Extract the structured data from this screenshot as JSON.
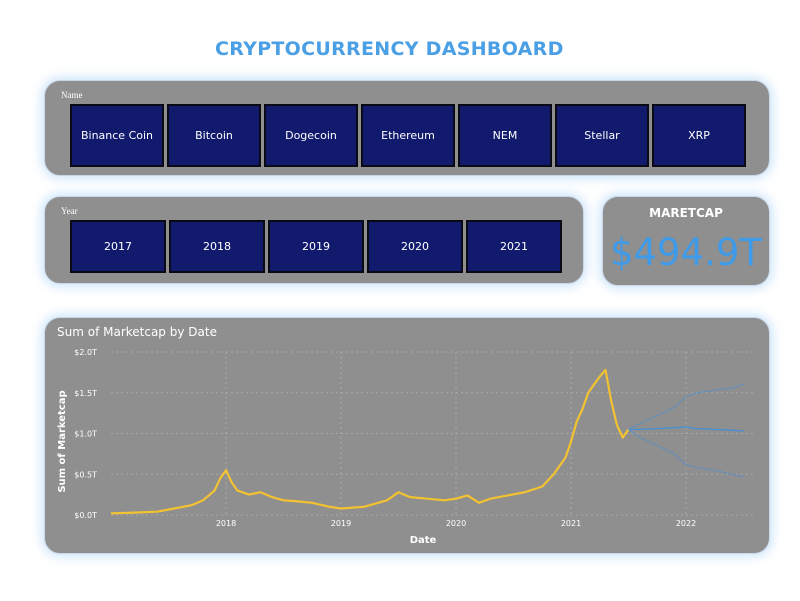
{
  "title": "CRYPTOCURRENCY DASHBOARD",
  "name_slicer": {
    "label": "Name",
    "items": [
      "Binance Coin",
      "Bitcoin",
      "Dogecoin",
      "Ethereum",
      "NEM",
      "Stellar",
      "XRP"
    ]
  },
  "year_slicer": {
    "label": "Year",
    "items": [
      "2017",
      "2018",
      "2019",
      "2020",
      "2021"
    ]
  },
  "kpi": {
    "label": "MARETCAP",
    "value": "$494.9T"
  },
  "colors": {
    "panel": "#8f8f8f",
    "slicer_button": "#121a6e",
    "accent": "#4a9fe5",
    "actual_line": "#f2c230",
    "forecast_line": "#3d8fe0"
  },
  "chart_data": {
    "type": "line",
    "title": "Sum of Marketcap by Date",
    "xlabel": "Date",
    "ylabel": "Sum of Marketcap",
    "ylim": [
      0,
      2.0
    ],
    "yunit": "T (trillion USD)",
    "y_ticks": [
      "$0.0T",
      "$0.5T",
      "$1.0T",
      "$1.5T",
      "$2.0T"
    ],
    "x_ticks": [
      "2018",
      "2019",
      "2020",
      "2021",
      "2022"
    ],
    "grid": true,
    "series": [
      {
        "name": "",
        "role": "actual",
        "x": [
          2017.0,
          2017.2,
          2017.4,
          2017.55,
          2017.7,
          2017.8,
          2017.9,
          2017.95,
          2018.0,
          2018.05,
          2018.1,
          2018.2,
          2018.3,
          2018.4,
          2018.5,
          2018.6,
          2018.75,
          2018.9,
          2019.0,
          2019.2,
          2019.4,
          2019.5,
          2019.6,
          2019.75,
          2019.9,
          2020.0,
          2020.1,
          2020.2,
          2020.3,
          2020.45,
          2020.6,
          2020.75,
          2020.85,
          2020.95,
          2021.0,
          2021.05,
          2021.1,
          2021.15,
          2021.2,
          2021.25,
          2021.3,
          2021.35,
          2021.4,
          2021.45,
          2021.5
        ],
        "y": [
          0.02,
          0.03,
          0.04,
          0.08,
          0.12,
          0.18,
          0.3,
          0.45,
          0.55,
          0.4,
          0.3,
          0.25,
          0.28,
          0.22,
          0.18,
          0.17,
          0.15,
          0.1,
          0.08,
          0.1,
          0.18,
          0.28,
          0.22,
          0.2,
          0.18,
          0.2,
          0.24,
          0.15,
          0.2,
          0.24,
          0.28,
          0.35,
          0.5,
          0.7,
          0.9,
          1.15,
          1.3,
          1.5,
          1.6,
          1.7,
          1.78,
          1.4,
          1.1,
          0.95,
          1.05
        ]
      },
      {
        "name": "",
        "role": "forecast",
        "x": [
          2021.5,
          2021.6,
          2021.75,
          2021.9,
          2022.0,
          2022.1,
          2022.25,
          2022.4,
          2022.5
        ],
        "y": [
          1.05,
          1.05,
          1.06,
          1.07,
          1.08,
          1.06,
          1.05,
          1.04,
          1.03
        ]
      },
      {
        "name": "",
        "role": "forecast-upper",
        "x": [
          2021.5,
          2021.6,
          2021.75,
          2021.9,
          2022.0,
          2022.1,
          2022.25,
          2022.4,
          2022.5
        ],
        "y": [
          1.05,
          1.12,
          1.22,
          1.32,
          1.45,
          1.5,
          1.53,
          1.56,
          1.6
        ]
      },
      {
        "name": "",
        "role": "forecast-lower",
        "x": [
          2021.5,
          2021.6,
          2021.75,
          2021.9,
          2022.0,
          2022.1,
          2022.25,
          2022.4,
          2022.5
        ],
        "y": [
          1.05,
          0.95,
          0.85,
          0.75,
          0.62,
          0.58,
          0.55,
          0.5,
          0.47
        ]
      }
    ]
  }
}
